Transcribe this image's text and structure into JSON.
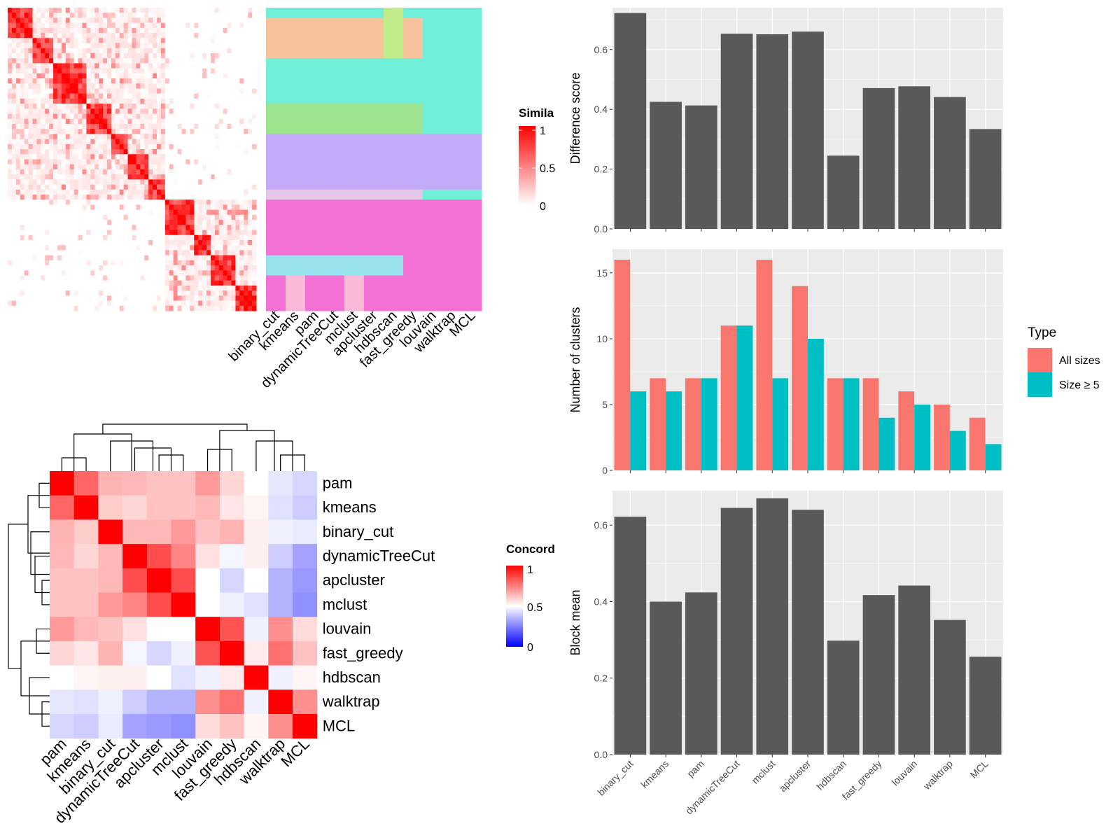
{
  "colors": {
    "panel_bg": "#ebebeb",
    "grid": "#ffffff",
    "bar": "#595959",
    "all_sizes": "#f8766d",
    "size_ge5": "#00bfc4",
    "sim_high": "#ff0000",
    "sim_low": "#ffffff",
    "conc_high": "#ff0000",
    "conc_mid": "#ffffff",
    "conc_low": "#0000ff"
  },
  "similarity_heatmap": {
    "legend_title": "Simila",
    "legend_ticks": [
      "1",
      "0.5",
      "0"
    ],
    "method_labels": [
      "binary_cut",
      "kmeans",
      "pam",
      "dynamicTreeCut",
      "mclust",
      "apcluster",
      "hdbscan",
      "fast_greedy",
      "louvain",
      "walktrap",
      "MCL"
    ]
  },
  "concordance_heatmap": {
    "legend_title": "Concord",
    "legend_ticks": [
      "1",
      "0.5",
      "0"
    ],
    "row_labels": [
      "pam",
      "kmeans",
      "binary_cut",
      "dynamicTreeCut",
      "apcluster",
      "mclust",
      "louvain",
      "fast_greedy",
      "hdbscan",
      "walktrap",
      "MCL"
    ],
    "col_labels": [
      "pam",
      "kmeans",
      "binary_cut",
      "dynamicTreeCut",
      "apcluster",
      "mclust",
      "louvain",
      "fast_greedy",
      "hdbscan",
      "walktrap",
      "MCL"
    ],
    "matrix": [
      [
        1.0,
        0.8,
        0.65,
        0.64,
        0.62,
        0.62,
        0.7,
        0.58,
        0.5,
        0.45,
        0.42
      ],
      [
        0.8,
        1.0,
        0.6,
        0.58,
        0.62,
        0.62,
        0.64,
        0.55,
        0.52,
        0.44,
        0.4
      ],
      [
        0.65,
        0.6,
        1.0,
        0.64,
        0.64,
        0.7,
        0.62,
        0.65,
        0.53,
        0.47,
        0.46
      ],
      [
        0.64,
        0.58,
        0.64,
        1.0,
        0.85,
        0.74,
        0.56,
        0.48,
        0.53,
        0.4,
        0.32
      ],
      [
        0.62,
        0.62,
        0.64,
        0.85,
        1.0,
        0.85,
        0.5,
        0.42,
        0.5,
        0.35,
        0.3
      ],
      [
        0.62,
        0.62,
        0.7,
        0.74,
        0.85,
        1.0,
        0.5,
        0.47,
        0.44,
        0.35,
        0.28
      ],
      [
        0.7,
        0.64,
        0.62,
        0.56,
        0.5,
        0.5,
        1.0,
        0.84,
        0.47,
        0.72,
        0.57
      ],
      [
        0.58,
        0.55,
        0.65,
        0.48,
        0.42,
        0.47,
        0.84,
        1.0,
        0.54,
        0.78,
        0.62
      ],
      [
        0.5,
        0.52,
        0.53,
        0.53,
        0.5,
        0.44,
        0.47,
        0.54,
        1.0,
        0.47,
        0.52
      ],
      [
        0.45,
        0.44,
        0.47,
        0.4,
        0.35,
        0.35,
        0.72,
        0.78,
        0.47,
        1.0,
        0.72
      ],
      [
        0.42,
        0.4,
        0.46,
        0.32,
        0.3,
        0.28,
        0.57,
        0.62,
        0.52,
        0.72,
        1.0
      ]
    ]
  },
  "chart_data": [
    {
      "type": "bar",
      "ylabel": "Difference score",
      "categories": [
        "binary_cut",
        "kmeans",
        "pam",
        "dynamicTreeCut",
        "mclust",
        "apcluster",
        "hdbscan",
        "fast_greedy",
        "louvain",
        "walktrap",
        "MCL"
      ],
      "values": [
        0.722,
        0.425,
        0.413,
        0.653,
        0.651,
        0.66,
        0.245,
        0.471,
        0.477,
        0.441,
        0.334
      ],
      "ylim": [
        0,
        0.74
      ],
      "yticks": [
        0.0,
        0.2,
        0.4,
        0.6
      ],
      "yticklabels": [
        "0.0",
        "0.2",
        "0.4",
        "0.6"
      ],
      "grid": true
    },
    {
      "type": "bar",
      "ylabel": "Number of clusters",
      "categories": [
        "binary_cut",
        "kmeans",
        "pam",
        "dynamicTreeCut",
        "mclust",
        "apcluster",
        "hdbscan",
        "fast_greedy",
        "louvain",
        "walktrap",
        "MCL"
      ],
      "series": [
        {
          "name": "All sizes",
          "values": [
            16,
            7,
            7,
            11,
            16,
            14,
            7,
            7,
            6,
            5,
            4
          ]
        },
        {
          "name": "Size ≥ 5",
          "values": [
            6,
            6,
            7,
            11,
            7,
            10,
            7,
            4,
            5,
            3,
            2
          ]
        }
      ],
      "ylim": [
        0,
        16.8
      ],
      "yticks": [
        0,
        5,
        10,
        15
      ],
      "yticklabels": [
        "0",
        "5",
        "10",
        "15"
      ],
      "legend_title": "Type",
      "legend_position": "right",
      "grid": true
    },
    {
      "type": "bar",
      "ylabel": "Block mean",
      "categories": [
        "binary_cut",
        "kmeans",
        "pam",
        "dynamicTreeCut",
        "mclust",
        "apcluster",
        "hdbscan",
        "fast_greedy",
        "louvain",
        "walktrap",
        "MCL"
      ],
      "values": [
        0.622,
        0.4,
        0.424,
        0.645,
        0.67,
        0.64,
        0.298,
        0.417,
        0.442,
        0.352,
        0.256
      ],
      "ylim": [
        0,
        0.69
      ],
      "yticks": [
        0.0,
        0.2,
        0.4,
        0.6
      ],
      "yticklabels": [
        "0.0",
        "0.2",
        "0.4",
        "0.6"
      ],
      "grid": true
    }
  ]
}
